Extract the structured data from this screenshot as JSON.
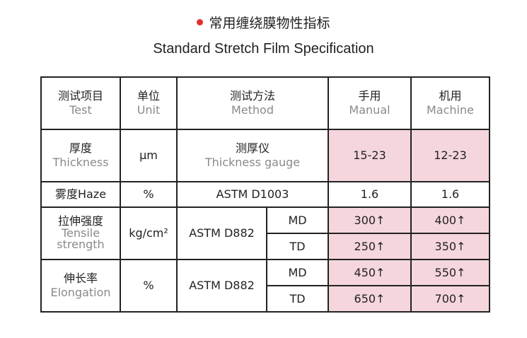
{
  "title_cn": "常用缠绕膜物性指标",
  "title_en": "Standard Stretch Film Specification",
  "colors": {
    "accent_dot": "#e03030",
    "highlight": "#f5d6dc"
  },
  "header": {
    "test": {
      "cn": "测试项目",
      "en": "Test"
    },
    "unit": {
      "cn": "单位",
      "en": "Unit"
    },
    "method": {
      "cn": "测试方法",
      "en": "Method"
    },
    "manual": {
      "cn": "手用",
      "en": "Manual"
    },
    "machine": {
      "cn": "机用",
      "en": "Machine"
    }
  },
  "rows": {
    "thickness": {
      "cn": "厚度",
      "en": "Thickness",
      "unit": "μm",
      "method_cn": "测厚仪",
      "method_en": "Thickness gauge",
      "manual": "15-23",
      "machine": "12-23"
    },
    "haze": {
      "name": "雾度Haze",
      "unit": "%",
      "method": "ASTM D1003",
      "manual": "1.6",
      "machine": "1.6"
    },
    "tensile": {
      "cn": "拉伸强度",
      "en": "Tensile strength",
      "unit": "kg/cm²",
      "method": "ASTM D882",
      "md": {
        "label": "MD",
        "manual": "300↑",
        "machine": "400↑"
      },
      "td": {
        "label": "TD",
        "manual": "250↑",
        "machine": "350↑"
      }
    },
    "elongation": {
      "cn": "伸长率",
      "en": "Elongation",
      "unit": "%",
      "method": "ASTM D882",
      "md": {
        "label": "MD",
        "manual": "450↑",
        "machine": "550↑"
      },
      "td": {
        "label": "TD",
        "manual": "650↑",
        "machine": "700↑"
      }
    }
  }
}
